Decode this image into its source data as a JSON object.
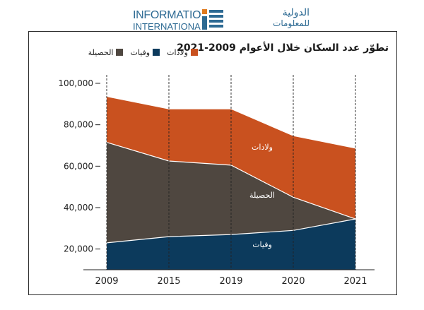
{
  "brand": {
    "en_line1": "INFORMATION",
    "en_line2": "INTERNATIONAL sal",
    "ar_line1": "الدولية",
    "ar_line2": "للمعلومات"
  },
  "colors": {
    "births": "#c9511f",
    "deaths": "#0c3a5c",
    "net": "#4f4740",
    "brand": "#2d6a93"
  },
  "chart_data": {
    "type": "area",
    "title": "تطوّر عدد السكان خلال الأعوام 2009-2021",
    "x": [
      "2009",
      "2015",
      "2019",
      "2020",
      "2021"
    ],
    "ylim": [
      0,
      100000
    ],
    "yticks": [
      "20,000",
      "40,000",
      "60,000",
      "80,000",
      "100,000"
    ],
    "ytick_values": [
      20000,
      40000,
      60000,
      80000,
      100000
    ],
    "grid": "vertical dashed",
    "legend_position": "top-left",
    "series": [
      {
        "name": "وفيات",
        "key": "deaths",
        "values": [
          23000,
          26000,
          27000,
          29000,
          34500
        ],
        "label": "وفيات"
      },
      {
        "name": "الحصيلة",
        "key": "net",
        "values": [
          48500,
          36500,
          33500,
          16000,
          0
        ],
        "label": "الحصيلة"
      },
      {
        "name": "ولادات",
        "key": "births",
        "values": [
          93500,
          87500,
          87500,
          74500,
          68500
        ],
        "label": "ولادات"
      }
    ]
  }
}
